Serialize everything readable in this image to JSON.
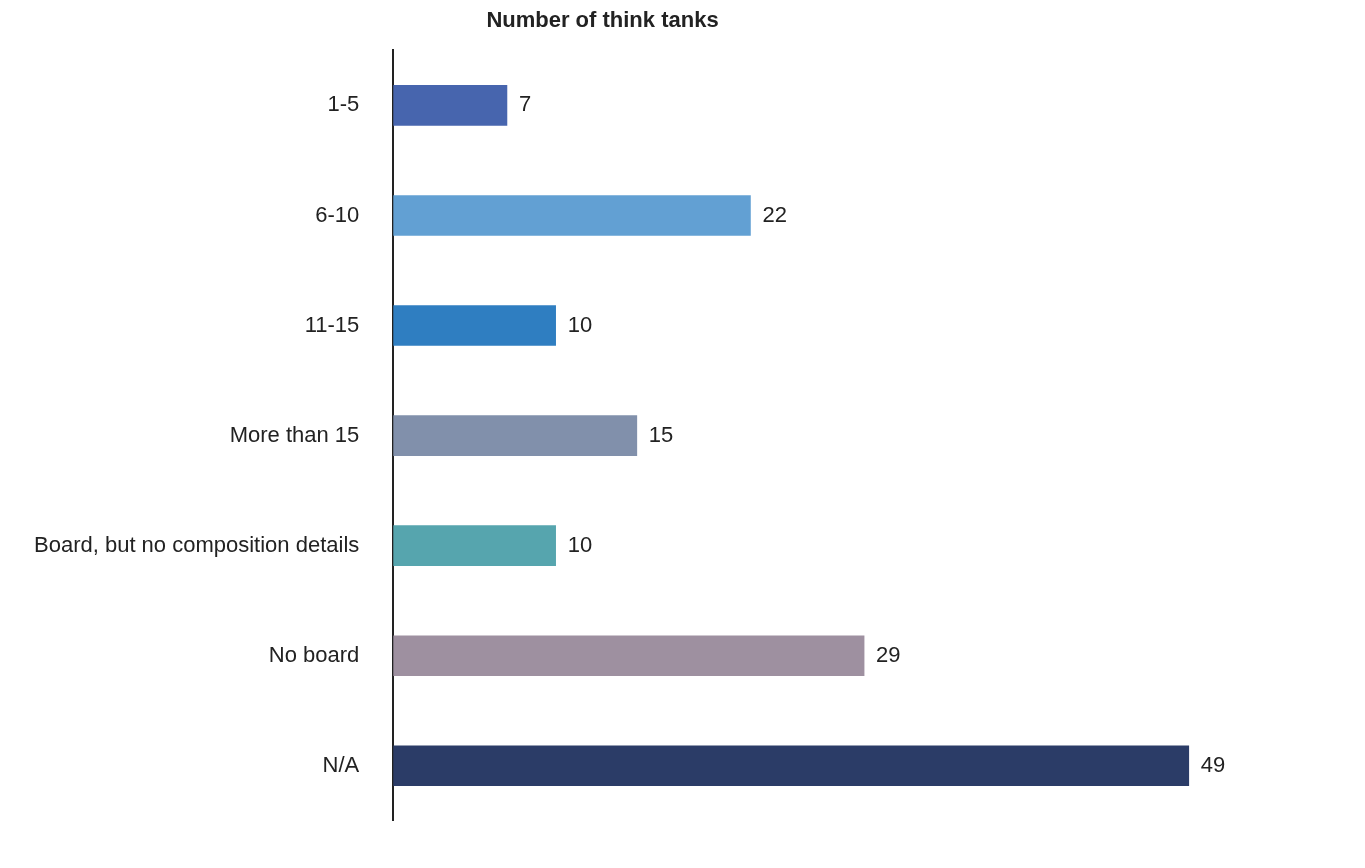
{
  "chart_data": {
    "type": "bar",
    "orientation": "horizontal",
    "title": "Number of think tanks",
    "categories": [
      "1-5",
      "6-10",
      "11-15",
      "More than 15",
      "Board, but no composition details",
      "No board",
      "N/A"
    ],
    "values": [
      7,
      22,
      10,
      15,
      10,
      29,
      49
    ],
    "colors": [
      "#4765ae",
      "#62a0d3",
      "#2f7ec1",
      "#8190ab",
      "#56a5ae",
      "#9e90a0",
      "#2b3c67"
    ],
    "data_labels": true,
    "grid": false,
    "legend": false
  }
}
